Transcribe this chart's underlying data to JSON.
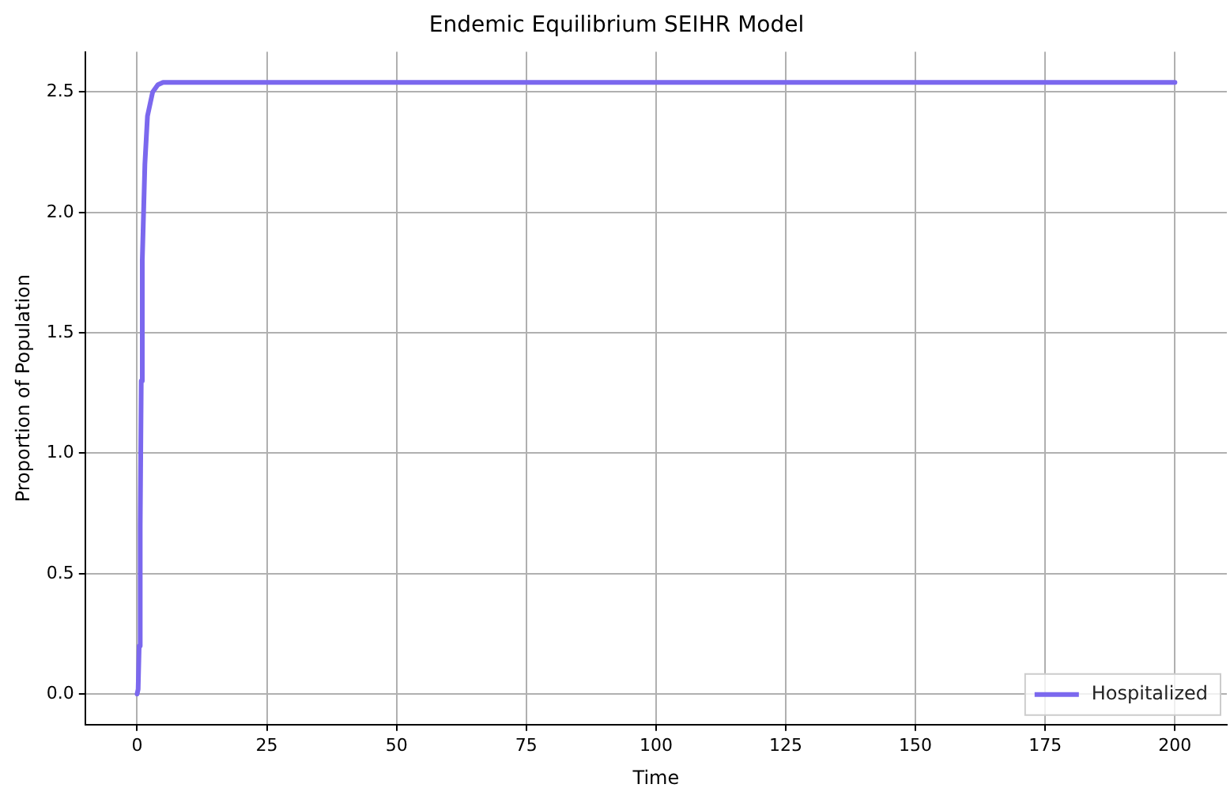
{
  "chart_data": {
    "type": "line",
    "title": "Endemic Equilibrium SEIHR Model",
    "xlabel": "Time",
    "ylabel": "Proportion of Population",
    "series": [
      {
        "name": "Hospitalized",
        "color": "#7b68ee",
        "x": [
          0,
          0.2,
          0.4,
          0.6,
          0.8,
          1,
          1.5,
          2,
          3,
          4,
          5,
          10,
          200
        ],
        "values": [
          0,
          0.02,
          0.2,
          0.7,
          1.3,
          1.8,
          2.2,
          2.4,
          2.5,
          2.53,
          2.54,
          2.54,
          2.54
        ]
      }
    ],
    "xlim": [
      -10,
      210
    ],
    "xticks": [
      0,
      25,
      50,
      75,
      100,
      125,
      150,
      175,
      200
    ],
    "ylim": [
      -0.127,
      2.667
    ],
    "yticks": [
      {
        "value": 0,
        "label": "0.0"
      },
      0.5,
      {
        "value": 1,
        "label": "1.0"
      },
      1.5,
      {
        "value": 2,
        "label": "2.0"
      },
      2.5
    ],
    "grid": true,
    "legend": "bottom right",
    "marker": "none",
    "line_style": "solid"
  }
}
